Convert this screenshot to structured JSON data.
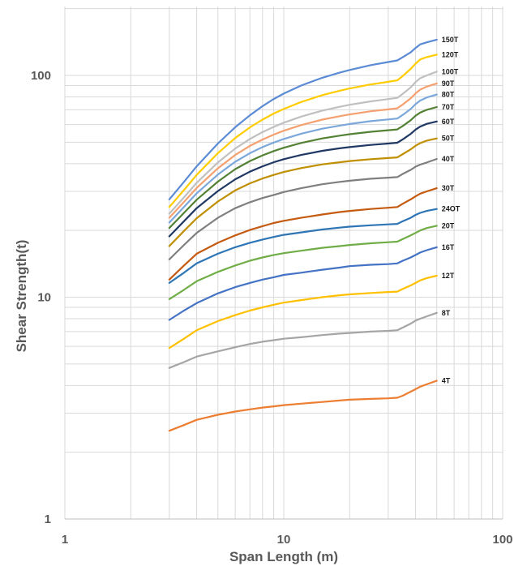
{
  "chart_data": {
    "type": "line",
    "title": "",
    "xlabel": "Span Length (m)",
    "ylabel": "Shear Strength(t)",
    "x_scale": "log",
    "y_scale": "log",
    "xlim": [
      1,
      100
    ],
    "ylim": [
      1,
      200
    ],
    "x_ticks": [
      "1",
      "10",
      "100"
    ],
    "y_ticks": [
      "1",
      "10",
      "100"
    ],
    "grid": true,
    "legend": "labels at line ends",
    "x": [
      3,
      3.5,
      4,
      5,
      6,
      7,
      8,
      9,
      10,
      12,
      15,
      18,
      20,
      25,
      30,
      33,
      35,
      38,
      40,
      42,
      45,
      50
    ],
    "series": [
      {
        "name": "4T",
        "color": "#ED7D31",
        "values": [
          2.5,
          2.65,
          2.8,
          2.95,
          3.05,
          3.12,
          3.18,
          3.22,
          3.26,
          3.31,
          3.37,
          3.42,
          3.45,
          3.48,
          3.5,
          3.52,
          3.6,
          3.75,
          3.85,
          3.95,
          4.05,
          4.2
        ]
      },
      {
        "name": "8T",
        "color": "#A5A5A5",
        "values": [
          4.8,
          5.1,
          5.4,
          5.7,
          5.95,
          6.15,
          6.3,
          6.4,
          6.5,
          6.6,
          6.75,
          6.85,
          6.9,
          7.0,
          7.05,
          7.1,
          7.3,
          7.6,
          7.85,
          8.0,
          8.2,
          8.5
        ]
      },
      {
        "name": "12T",
        "color": "#FFC000",
        "values": [
          5.9,
          6.5,
          7.1,
          7.8,
          8.3,
          8.7,
          9.0,
          9.25,
          9.45,
          9.7,
          10.0,
          10.2,
          10.3,
          10.45,
          10.55,
          10.6,
          10.9,
          11.3,
          11.6,
          11.9,
          12.2,
          12.5
        ]
      },
      {
        "name": "16T",
        "color": "#4472C4",
        "values": [
          7.9,
          8.7,
          9.4,
          10.4,
          11.1,
          11.6,
          12.0,
          12.3,
          12.6,
          12.9,
          13.3,
          13.6,
          13.8,
          14.0,
          14.1,
          14.2,
          14.6,
          15.1,
          15.5,
          15.9,
          16.3,
          16.8
        ]
      },
      {
        "name": "20T",
        "color": "#70AD47",
        "values": [
          9.8,
          10.8,
          11.8,
          13.0,
          13.9,
          14.6,
          15.1,
          15.5,
          15.8,
          16.2,
          16.7,
          17.0,
          17.2,
          17.5,
          17.7,
          17.8,
          18.3,
          19.0,
          19.5,
          20.0,
          20.5,
          21.0
        ]
      },
      {
        "name": "24OT",
        "color": "#2E75B6",
        "values": [
          11.6,
          12.9,
          14.2,
          15.7,
          16.8,
          17.6,
          18.2,
          18.7,
          19.1,
          19.6,
          20.2,
          20.6,
          20.8,
          21.1,
          21.3,
          21.4,
          22.0,
          22.8,
          23.5,
          24.0,
          24.5,
          25.0
        ]
      },
      {
        "name": "30T",
        "color": "#C55A11",
        "values": [
          12.0,
          13.9,
          15.7,
          17.6,
          19.0,
          20.1,
          20.9,
          21.6,
          22.1,
          22.8,
          23.6,
          24.2,
          24.5,
          25.0,
          25.3,
          25.5,
          26.4,
          27.6,
          28.5,
          29.3,
          30.0,
          31.0
        ]
      },
      {
        "name": "40T",
        "color": "#7F7F7F",
        "values": [
          14.8,
          17.2,
          19.5,
          22.8,
          25.2,
          26.8,
          28.0,
          28.9,
          29.8,
          31.0,
          32.3,
          33.1,
          33.5,
          34.2,
          34.6,
          34.8,
          36.0,
          37.5,
          38.8,
          39.6,
          40.5,
          42.0
        ]
      },
      {
        "name": "50T",
        "color": "#BF8F00",
        "values": [
          17.0,
          19.9,
          22.7,
          27.0,
          30.3,
          32.6,
          34.3,
          35.6,
          36.7,
          38.2,
          39.7,
          40.6,
          41.1,
          41.9,
          42.4,
          42.7,
          44.2,
          46.4,
          48.2,
          49.5,
          50.8,
          52.0
        ]
      },
      {
        "name": "60T",
        "color": "#203864",
        "values": [
          18.8,
          22.0,
          25.2,
          30.1,
          34.0,
          36.8,
          38.9,
          40.6,
          41.9,
          43.8,
          45.7,
          46.9,
          47.5,
          48.6,
          49.3,
          49.7,
          51.5,
          54.5,
          57.0,
          58.8,
          60.5,
          62.0
        ]
      },
      {
        "name": "70T",
        "color": "#548235",
        "values": [
          20.5,
          24.0,
          27.5,
          33.2,
          37.8,
          41.1,
          43.6,
          45.6,
          47.2,
          49.6,
          52.0,
          53.5,
          54.3,
          55.7,
          56.6,
          57.1,
          59.2,
          62.8,
          65.8,
          68.0,
          70.0,
          72.0
        ]
      },
      {
        "name": "80T",
        "color": "#7BA7DA",
        "values": [
          21.7,
          25.5,
          29.4,
          35.7,
          40.8,
          44.6,
          47.5,
          49.8,
          51.7,
          54.6,
          57.5,
          59.4,
          60.4,
          62.2,
          63.3,
          63.9,
          66.4,
          70.6,
          74.2,
          77.0,
          79.5,
          82.0
        ]
      },
      {
        "name": "90T",
        "color": "#F4A070",
        "values": [
          22.8,
          26.9,
          31.1,
          38.1,
          43.8,
          48.1,
          51.4,
          54.1,
          56.3,
          59.7,
          63.2,
          65.5,
          66.7,
          68.9,
          70.3,
          71.1,
          74.0,
          78.8,
          83.0,
          86.3,
          89.0,
          92.0
        ]
      },
      {
        "name": "100T",
        "color": "#C0C0C0",
        "values": [
          23.8,
          28.2,
          32.8,
          40.5,
          46.8,
          51.7,
          55.5,
          58.6,
          61.2,
          65.2,
          69.4,
          72.2,
          73.7,
          76.4,
          78.2,
          79.2,
          82.7,
          88.3,
          93.3,
          97.2,
          100.0,
          104.0
        ]
      },
      {
        "name": "120T",
        "color": "#FFCC00",
        "values": [
          25.5,
          30.4,
          35.6,
          44.6,
          52.2,
          58.3,
          63.2,
          67.3,
          70.6,
          75.9,
          81.5,
          85.3,
          87.3,
          91.1,
          93.6,
          95.0,
          99.5,
          107.0,
          113.0,
          118.0,
          121.0,
          124.0
        ]
      },
      {
        "name": "150T",
        "color": "#5B8BD5",
        "values": [
          27.6,
          33.1,
          38.9,
          49.3,
          58.4,
          66.1,
          72.7,
          78.3,
          82.8,
          90.0,
          97.6,
          102.9,
          105.8,
          111.3,
          114.9,
          116.9,
          121.0,
          127.0,
          133.0,
          138.0,
          141.0,
          145.0
        ]
      }
    ]
  }
}
